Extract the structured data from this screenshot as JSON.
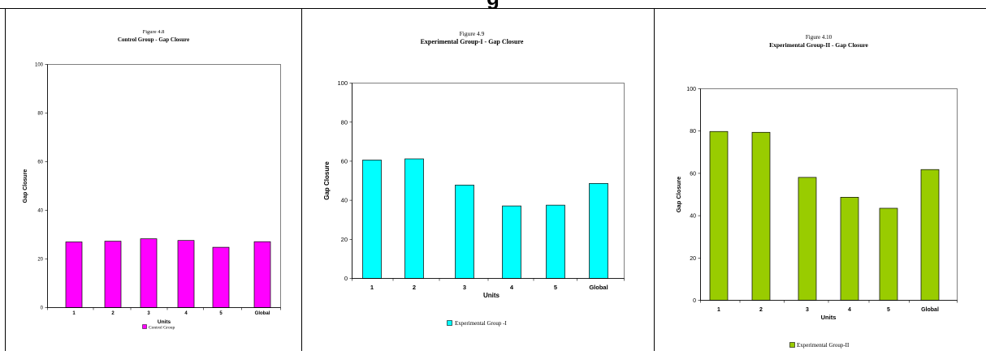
{
  "page": {
    "heading": "g"
  },
  "charts": [
    {
      "caption": "Figure 4.8",
      "title": "Control Group - Gap Closure",
      "legend": "Control Group",
      "color": "#ff00ff"
    },
    {
      "caption": "Figure 4.9",
      "title": "Experimental  Group-I  - Gap Closure",
      "legend": "Experimental Group -I",
      "color": "#00ffff"
    },
    {
      "caption": "Figure 4.10",
      "title": "Experimental  Group-II - Gap Closure",
      "legend": "Experimental Group-II",
      "color": "#99cc00"
    }
  ],
  "chart_data": [
    {
      "type": "bar",
      "title": "Control Group - Gap Closure",
      "xlabel": "Units",
      "ylabel": "Gap Closure",
      "categories": [
        "1",
        "2",
        "3",
        "4",
        "5",
        "Global"
      ],
      "series": [
        {
          "name": "Control Group",
          "values": [
            27,
            27.3,
            28.3,
            27.6,
            24.8,
            27.1
          ]
        }
      ],
      "ylim": [
        0,
        100
      ],
      "yticks": [
        0,
        20,
        40,
        60,
        80,
        100
      ],
      "grid": false,
      "legend_position": "bottom"
    },
    {
      "type": "bar",
      "title": "Experimental  Group-I  - Gap Closure",
      "xlabel": "Units",
      "ylabel": "Gap Closure",
      "categories": [
        "1",
        "2",
        "3",
        "4",
        "5",
        "Global"
      ],
      "series": [
        {
          "name": "Experimental Group -I",
          "values": [
            60.6,
            61.2,
            47.8,
            37.1,
            37.5,
            48.6
          ]
        }
      ],
      "ylim": [
        0,
        100
      ],
      "yticks": [
        0,
        20,
        40,
        60,
        80,
        100
      ],
      "grid": false,
      "legend_position": "bottom"
    },
    {
      "type": "bar",
      "title": "Experimental  Group-II - Gap Closure",
      "xlabel": "Units",
      "ylabel": "Gap Closure",
      "categories": [
        "1",
        "2",
        "3",
        "4",
        "5",
        "Global"
      ],
      "series": [
        {
          "name": "Experimental Group-II",
          "values": [
            79.8,
            79.4,
            58.1,
            48.7,
            43.5,
            61.8
          ]
        }
      ],
      "ylim": [
        0,
        100
      ],
      "yticks": [
        0,
        20,
        40,
        60,
        80,
        100
      ],
      "grid": false,
      "legend_position": "bottom"
    }
  ]
}
